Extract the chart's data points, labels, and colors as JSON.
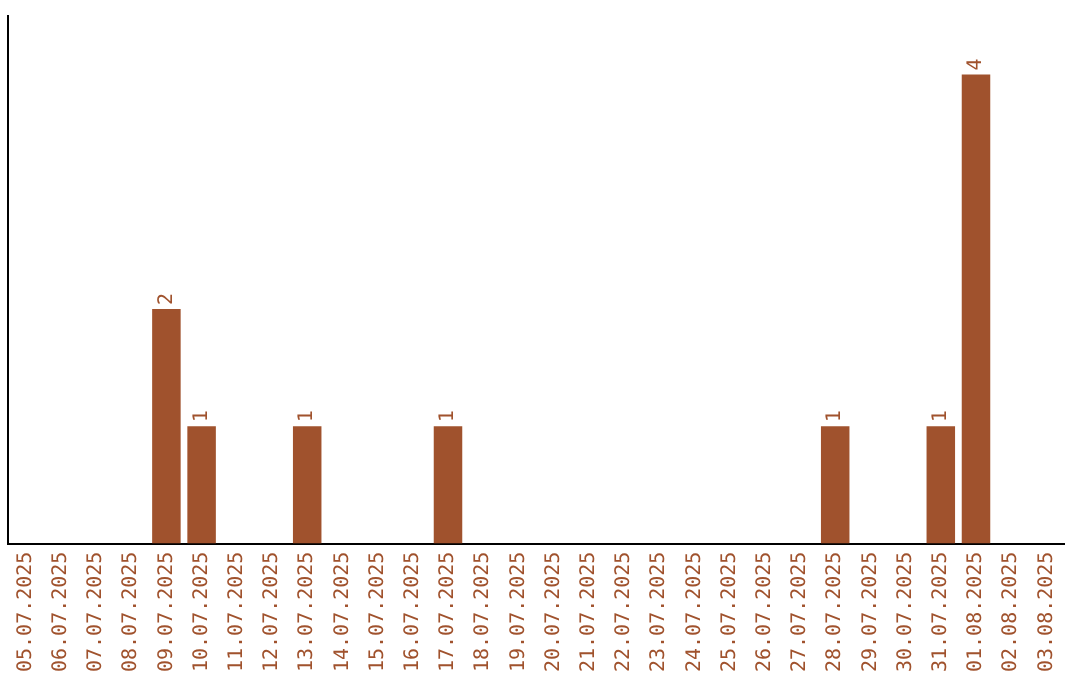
{
  "chart_data": {
    "type": "bar",
    "categories": [
      "05.07.2025",
      "06.07.2025",
      "07.07.2025",
      "08.07.2025",
      "09.07.2025",
      "10.07.2025",
      "11.07.2025",
      "12.07.2025",
      "13.07.2025",
      "14.07.2025",
      "15.07.2025",
      "16.07.2025",
      "17.07.2025",
      "18.07.2025",
      "19.07.2025",
      "20.07.2025",
      "21.07.2025",
      "22.07.2025",
      "23.07.2025",
      "24.07.2025",
      "25.07.2025",
      "26.07.2025",
      "27.07.2025",
      "28.07.2025",
      "29.07.2025",
      "30.07.2025",
      "31.07.2025",
      "01.08.2025",
      "02.08.2025",
      "03.08.2025"
    ],
    "values": [
      0,
      0,
      0,
      0,
      2,
      1,
      0,
      0,
      1,
      0,
      0,
      0,
      1,
      0,
      0,
      0,
      0,
      0,
      0,
      0,
      0,
      0,
      0,
      1,
      0,
      0,
      1,
      4,
      0,
      0
    ],
    "value_labels": [
      null,
      null,
      null,
      null,
      "2",
      "1",
      null,
      null,
      "1",
      null,
      null,
      null,
      "1",
      null,
      null,
      null,
      null,
      null,
      null,
      null,
      null,
      null,
      null,
      "1",
      null,
      null,
      "1",
      "4",
      null,
      null
    ],
    "color": "#a0522d",
    "grid": false,
    "legend": false
  }
}
